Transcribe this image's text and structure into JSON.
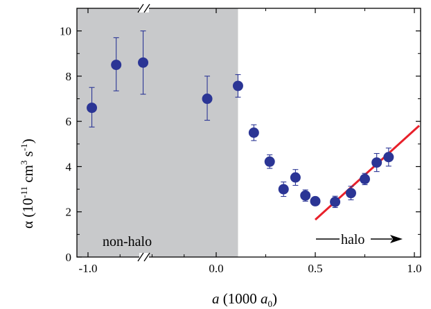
{
  "chart_data": {
    "type": "scatter",
    "xlabel": {
      "italic": "a",
      "pre": " (1000 ",
      "italic2": "a",
      "sub": "0",
      "post": ")"
    },
    "ylabel": {
      "main": "α (10",
      "sup1": "-11",
      "mid": " cm",
      "sup2": "3",
      "mid2": " s",
      "sup3": "-1",
      "post": ")"
    },
    "x_ticks": [
      {
        "label": "-1.0",
        "x": -1.0
      },
      {
        "label": "0.0",
        "x": 0.0
      },
      {
        "label": "0.5",
        "x": 0.5
      },
      {
        "label": "1.0",
        "x": 1.0
      }
    ],
    "y_ticks": [
      {
        "label": "0",
        "y": 0
      },
      {
        "label": "2",
        "y": 2
      },
      {
        "label": "4",
        "y": 4
      },
      {
        "label": "6",
        "y": 6
      },
      {
        "label": "8",
        "y": 8
      },
      {
        "label": "10",
        "y": 10
      }
    ],
    "ylim": [
      0,
      11
    ],
    "axis_break": true,
    "nonhalo_region": {
      "label": "non-halo",
      "x_end": 0.11,
      "color": "#c8c9cb"
    },
    "halo_label": "halo",
    "points": [
      {
        "x": -0.97,
        "y": 6.6,
        "err_up": 0.9,
        "err_down": 0.85
      },
      {
        "x": -0.78,
        "y": 8.5,
        "err_up": 1.2,
        "err_down": 1.15
      },
      {
        "x": -0.57,
        "y": 8.6,
        "err_up": 1.4,
        "err_down": 1.4
      },
      {
        "x": -0.07,
        "y": 7.0,
        "err_up": 1.0,
        "err_down": 0.95
      },
      {
        "x": 0.11,
        "y": 7.57,
        "err_up": 0.5,
        "err_down": 0.5
      },
      {
        "x": 0.19,
        "y": 5.5,
        "err_up": 0.35,
        "err_down": 0.35
      },
      {
        "x": 0.27,
        "y": 4.22,
        "err_up": 0.3,
        "err_down": 0.3
      },
      {
        "x": 0.34,
        "y": 3.0,
        "err_up": 0.32,
        "err_down": 0.32
      },
      {
        "x": 0.4,
        "y": 3.52,
        "err_up": 0.35,
        "err_down": 0.35
      },
      {
        "x": 0.45,
        "y": 2.72,
        "err_up": 0.25,
        "err_down": 0.25
      },
      {
        "x": 0.5,
        "y": 2.47,
        "err_up": 0.1,
        "err_down": 0.1
      },
      {
        "x": 0.6,
        "y": 2.44,
        "err_up": 0.25,
        "err_down": 0.25
      },
      {
        "x": 0.68,
        "y": 2.83,
        "err_up": 0.3,
        "err_down": 0.3
      },
      {
        "x": 0.75,
        "y": 3.45,
        "err_up": 0.25,
        "err_down": 0.25
      },
      {
        "x": 0.81,
        "y": 4.18,
        "err_up": 0.4,
        "err_down": 0.4
      },
      {
        "x": 0.87,
        "y": 4.42,
        "err_up": 0.4,
        "err_down": 0.4
      }
    ],
    "fit_line": {
      "x": [
        0.5,
        1.08
      ],
      "y": [
        1.65,
        6.25
      ],
      "color": "#e8202a"
    },
    "marker_color": "#2b3595"
  }
}
